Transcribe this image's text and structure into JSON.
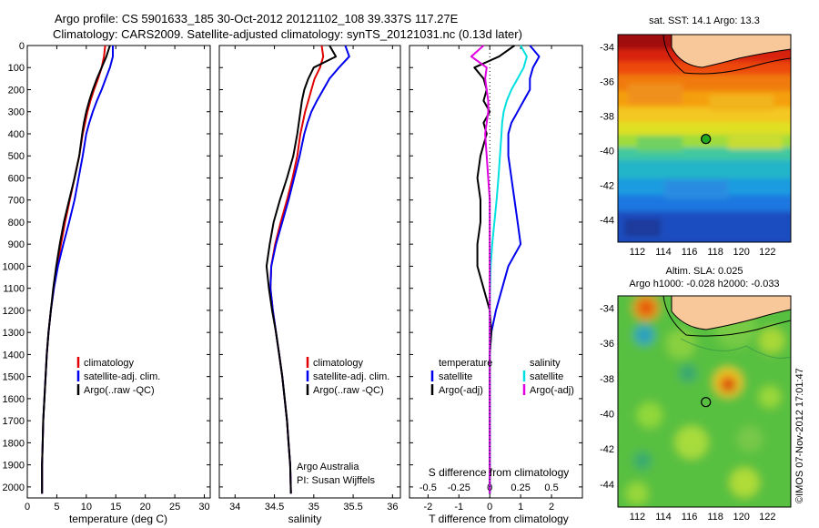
{
  "header": {
    "title_line1": "Argo profile: CS 5901633_185 30-Oct-2012 20121102_108 39.337S 117.27E",
    "title_line2": "Climatology: CARS2009. Satellite-adjusted climatology: synTS_20121031.nc (0.13d later)"
  },
  "colors": {
    "climatology": "#e00000",
    "satellite": "#0000ee",
    "argo": "#000000",
    "salinity_satellite": "#00e0e0",
    "salinity_argo": "#e000e0"
  },
  "chart_data": [
    {
      "type": "line",
      "panel": "temperature",
      "xlabel": "temperature (deg C)",
      "xlim": [
        0,
        31
      ],
      "xticks": [
        "0",
        "5",
        "10",
        "15",
        "20",
        "25",
        "30"
      ],
      "xtick_values": [
        0,
        5,
        10,
        15,
        20,
        25,
        30
      ],
      "ylim": [
        0,
        2050
      ],
      "yticks": [
        "0",
        "100",
        "200",
        "300",
        "400",
        "500",
        "600",
        "700",
        "800",
        "900",
        "1000",
        "1100",
        "1200",
        "1300",
        "1400",
        "1500",
        "1600",
        "1700",
        "1800",
        "1900",
        "2000"
      ],
      "ytick_values": [
        0,
        100,
        200,
        300,
        400,
        500,
        600,
        700,
        800,
        900,
        1000,
        1100,
        1200,
        1300,
        1400,
        1500,
        1600,
        1700,
        1800,
        1900,
        2000
      ],
      "legend": [
        "climatology",
        "satellite-adj. clim.",
        "Argo(..raw -QC)"
      ],
      "series": [
        {
          "name": "climatology",
          "color": "#e00000",
          "x": [
            13.2,
            13.0,
            12.6,
            12.0,
            11.3,
            10.7,
            10.2,
            9.8,
            9.4,
            8.8,
            8.0,
            7.2,
            6.4,
            5.7,
            5.1,
            4.5,
            4.0,
            3.6,
            3.3,
            3.1,
            2.9,
            2.7,
            2.6,
            2.5,
            2.5
          ],
          "y": [
            0,
            50,
            100,
            150,
            200,
            250,
            300,
            350,
            400,
            500,
            600,
            700,
            800,
            900,
            1000,
            1100,
            1200,
            1300,
            1400,
            1500,
            1600,
            1700,
            1800,
            1900,
            2030
          ]
        },
        {
          "name": "satellite-adj. clim.",
          "color": "#0000ee",
          "x": [
            14.5,
            14.5,
            14.0,
            13.3,
            12.6,
            11.8,
            11.1,
            10.5,
            10.0,
            9.4,
            8.7,
            8.0,
            7.1,
            6.1,
            5.2,
            4.5,
            4.0,
            3.6,
            3.3,
            3.1,
            2.9,
            2.7,
            2.6,
            2.5,
            2.5
          ],
          "y": [
            0,
            50,
            100,
            150,
            200,
            250,
            300,
            350,
            400,
            500,
            600,
            700,
            800,
            900,
            1000,
            1100,
            1200,
            1300,
            1400,
            1500,
            1600,
            1700,
            1800,
            1900,
            2030
          ]
        },
        {
          "name": "Argo(..raw -QC)",
          "color": "#000000",
          "x": [
            14.0,
            13.4,
            12.6,
            11.8,
            11.1,
            10.5,
            10.0,
            9.6,
            9.3,
            8.8,
            8.0,
            7.1,
            6.2,
            5.5,
            4.9,
            4.4,
            4.0,
            3.6,
            3.3,
            3.1,
            2.9,
            2.7,
            2.6,
            2.5,
            2.5
          ],
          "y": [
            0,
            50,
            100,
            150,
            200,
            250,
            300,
            350,
            400,
            500,
            600,
            700,
            800,
            900,
            1000,
            1100,
            1200,
            1300,
            1400,
            1500,
            1600,
            1700,
            1800,
            1900,
            2030
          ]
        }
      ]
    },
    {
      "type": "line",
      "panel": "salinity",
      "xlabel": "salinity",
      "xlim": [
        33.8,
        36.1
      ],
      "xticks": [
        "34",
        "34.5",
        "35",
        "35.5",
        "36"
      ],
      "xtick_values": [
        34,
        34.5,
        35,
        35.5,
        36
      ],
      "ylim": [
        0,
        2050
      ],
      "legend": [
        "climatology",
        "satellite-adj. clim.",
        "Argo(..raw -QC)"
      ],
      "annotations": [
        "Argo Australia",
        "PI: Susan Wijffels"
      ],
      "series": [
        {
          "name": "climatology",
          "color": "#e00000",
          "x": [
            35.1,
            35.12,
            35.08,
            35.01,
            34.97,
            34.93,
            34.89,
            34.86,
            34.83,
            34.79,
            34.73,
            34.66,
            34.58,
            34.51,
            34.46,
            34.45,
            34.48,
            34.52,
            34.56,
            34.6,
            34.63,
            34.66,
            34.68,
            34.7,
            34.71
          ],
          "y": [
            0,
            50,
            100,
            150,
            200,
            250,
            300,
            350,
            400,
            500,
            600,
            700,
            800,
            900,
            1000,
            1100,
            1200,
            1300,
            1400,
            1500,
            1600,
            1700,
            1800,
            1900,
            2030
          ]
        },
        {
          "name": "satellite-adj. clim.",
          "color": "#0000ee",
          "x": [
            35.4,
            35.45,
            35.32,
            35.2,
            35.12,
            35.04,
            34.97,
            34.92,
            34.88,
            34.82,
            34.75,
            34.68,
            34.6,
            34.52,
            34.46,
            34.45,
            34.48,
            34.52,
            34.56,
            34.6,
            34.63,
            34.66,
            34.68,
            34.7,
            34.71
          ],
          "y": [
            0,
            50,
            100,
            150,
            200,
            250,
            300,
            350,
            400,
            500,
            600,
            700,
            800,
            900,
            1000,
            1100,
            1200,
            1300,
            1400,
            1500,
            1600,
            1700,
            1800,
            1900,
            2030
          ]
        },
        {
          "name": "Argo(..raw -QC)",
          "color": "#000000",
          "x": [
            35.2,
            35.28,
            35.0,
            34.93,
            34.88,
            34.85,
            34.83,
            34.81,
            34.79,
            34.74,
            34.66,
            34.57,
            34.49,
            34.44,
            34.4,
            34.43,
            34.47,
            34.52,
            34.56,
            34.6,
            34.63,
            34.66,
            34.68,
            34.7,
            34.71
          ],
          "y": [
            0,
            50,
            100,
            150,
            200,
            250,
            300,
            350,
            400,
            500,
            600,
            700,
            800,
            900,
            1000,
            1100,
            1200,
            1300,
            1400,
            1500,
            1600,
            1700,
            1800,
            1900,
            2030
          ]
        }
      ]
    },
    {
      "type": "line",
      "panel": "difference",
      "xlabel_bottom": "T difference from climatology",
      "xlabel_top": "S difference from climatology",
      "xlim": [
        -2.6,
        3.0
      ],
      "xticks_bottom": [
        "-2",
        "-1",
        "0",
        "1",
        "2"
      ],
      "xtick_values_bottom": [
        -2,
        -1,
        0,
        1,
        2
      ],
      "xticks_top": [
        "-0.5",
        "-0.25",
        "0",
        "0.25",
        "0.5"
      ],
      "xtick_values_top": [
        -0.5,
        -0.25,
        0,
        0.25,
        0.5
      ],
      "ylim": [
        0,
        2050
      ],
      "legend_temperature": {
        "heading": "temperature",
        "items": [
          "satellite",
          "Argo(-adj)"
        ]
      },
      "legend_salinity": {
        "heading": "salinity",
        "items": [
          "satellite",
          "Argo(-adj)"
        ]
      },
      "series": [
        {
          "name": "satellite",
          "color": "#0000ee",
          "x": [
            1.3,
            1.6,
            1.4,
            1.3,
            1.3,
            1.1,
            0.9,
            0.7,
            0.6,
            0.6,
            0.7,
            0.8,
            0.9,
            1.0,
            0.6,
            0.4,
            0.2,
            0.05,
            0.0,
            0.0,
            0.0,
            0.0,
            0.0,
            0.0
          ],
          "y": [
            0,
            50,
            100,
            150,
            200,
            250,
            300,
            350,
            400,
            500,
            600,
            700,
            800,
            900,
            1000,
            1100,
            1200,
            1300,
            1400,
            1500,
            1600,
            1700,
            1800,
            2030
          ]
        },
        {
          "name": "Argo(-adj)",
          "color": "#000000",
          "x": [
            0.8,
            0.3,
            -0.5,
            -0.2,
            -0.1,
            -0.2,
            0.0,
            -0.2,
            -0.1,
            -0.3,
            -0.4,
            -0.3,
            -0.3,
            -0.4,
            -0.4,
            -0.2,
            0.0,
            0.05,
            0.0,
            0.0,
            0.0,
            0.0,
            0.0,
            0.0
          ],
          "y": [
            0,
            50,
            100,
            150,
            200,
            250,
            300,
            350,
            400,
            500,
            600,
            700,
            800,
            900,
            1000,
            1100,
            1200,
            1300,
            1400,
            1500,
            1600,
            1700,
            1800,
            2030
          ]
        },
        {
          "name": "satellite",
          "color": "#00e0e0",
          "x": [
            1.0,
            1.2,
            1.1,
            0.9,
            0.7,
            0.55,
            0.45,
            0.4,
            0.38,
            0.33,
            0.28,
            0.22,
            0.15,
            0.08,
            0.03,
            0.01,
            0.0,
            0.0,
            0.0,
            0.0,
            0.0,
            0.0,
            0.0,
            0.0
          ],
          "y": [
            0,
            50,
            100,
            150,
            200,
            250,
            300,
            350,
            400,
            500,
            600,
            700,
            800,
            900,
            1000,
            1100,
            1200,
            1300,
            1400,
            1500,
            1600,
            1700,
            1800,
            2030
          ]
        },
        {
          "name": "Argo(-adj)",
          "color": "#e000e0",
          "x": [
            -0.2,
            -0.6,
            -0.1,
            -0.15,
            -0.1,
            -0.05,
            -0.05,
            -0.1,
            -0.15,
            -0.1,
            -0.05,
            0.0,
            0.0,
            0.0,
            0.0,
            0.0,
            0.0,
            0.0,
            0.0,
            0.0,
            0.0,
            0.0,
            0.0,
            0.0
          ],
          "y": [
            0,
            50,
            100,
            150,
            200,
            250,
            300,
            350,
            400,
            500,
            600,
            700,
            800,
            900,
            1000,
            1100,
            1200,
            1300,
            1400,
            1500,
            1600,
            1700,
            1800,
            2030
          ]
        }
      ]
    },
    {
      "type": "heatmap",
      "panel": "map-sst",
      "title": "sat. SST: 14.1 Argo: 13.3",
      "xlim": [
        110.5,
        123.8
      ],
      "ylim": [
        -45.3,
        -33.3
      ],
      "xticks": [
        "112",
        "114",
        "116",
        "118",
        "120",
        "122"
      ],
      "xtick_values": [
        112,
        114,
        116,
        118,
        120,
        122
      ],
      "yticks": [
        "-34",
        "-36",
        "-38",
        "-40",
        "-42",
        "-44"
      ],
      "ytick_values": [
        -34,
        -36,
        -38,
        -40,
        -42,
        -44
      ],
      "marker": {
        "lon": 117.27,
        "lat": -39.337
      }
    },
    {
      "type": "heatmap",
      "panel": "map-sla",
      "title": "Altim. SLA: 0.025",
      "subtitle": "Argo h1000: -0.028 h2000: -0.033",
      "xlim": [
        110.5,
        123.8
      ],
      "ylim": [
        -45.3,
        -33.3
      ],
      "xticks": [
        "112",
        "114",
        "116",
        "118",
        "120",
        "122"
      ],
      "xtick_values": [
        112,
        114,
        116,
        118,
        120,
        122
      ],
      "yticks": [
        "-34",
        "-36",
        "-38",
        "-40",
        "-42",
        "-44"
      ],
      "ytick_values": [
        -34,
        -36,
        -38,
        -40,
        -42,
        -44
      ],
      "marker": {
        "lon": 117.27,
        "lat": -39.337
      }
    }
  ],
  "footer": {
    "stamp": "©IMOS 07-Nov-2012 17:01:47"
  }
}
